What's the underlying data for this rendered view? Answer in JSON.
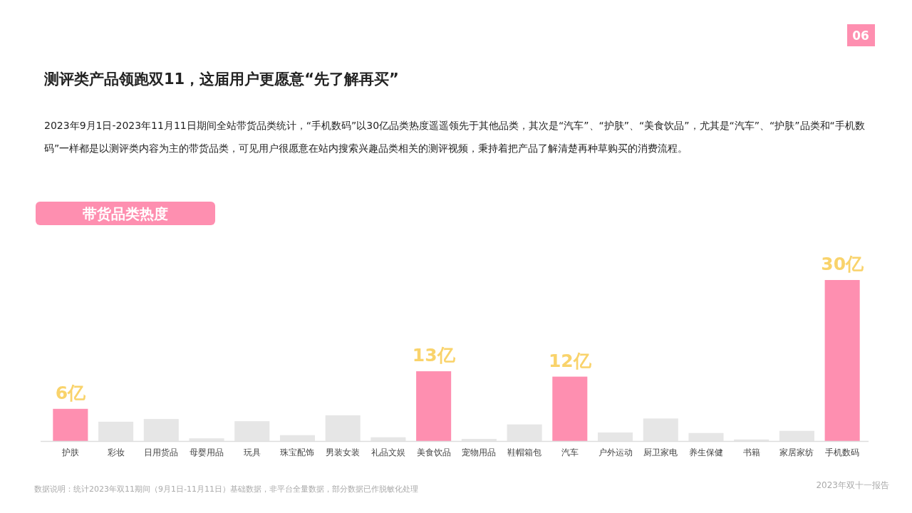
{
  "chart_data": {
    "type": "bar",
    "title": "测评类产品领跑双11，这届用户更愿意“先了解再买”",
    "subtitle": "2023年9月1日-2023年11月11日期间全站带货品类统计，“手机数码”以30亿品类热度遥遥领先于其他品类，其次是“汽车”、“护肤”、“美食饮品”，尤其是“汽车”、“护肤”品类和“手机数码”一样都是以测评类内容为主的带货品类，可见用户很愿意在站内搜索兴趣品类相关的测评视频，秉持着把产品了解清楚再种草购买的消费流程。",
    "annotations": [
      "带货品类热度",
      "数据说明：统计2023年双11期间（9月1日-11月11日）基础数据，非平台全量数据，部分数据已作脱敏化处理",
      "2023年双十一报告",
      "06"
    ],
    "categories": [
      "护肤",
      "彩妆",
      "日用货品",
      "母婴用品",
      "玩具",
      "珠宝配饰",
      "男装女装",
      "礼品文娱",
      "美食饮品",
      "宠物用品",
      "鞋帽箱包",
      "汽车",
      "户外运动",
      "厨卫家电",
      "养生保健",
      "书籍",
      "家居家纺",
      "手机数码"
    ],
    "values": [
      6,
      3.6,
      4.1,
      0.5,
      3.7,
      1.1,
      4.8,
      0.7,
      13,
      0.4,
      3.1,
      12,
      1.6,
      4.2,
      1.5,
      0.3,
      1.9,
      30
    ],
    "colors": [
      "#fe8fb0",
      "#e6e6e6",
      "#e6e6e6",
      "#e6e6e6",
      "#e6e6e6",
      "#e6e6e6",
      "#e6e6e6",
      "#e6e6e6",
      "#fe8fb0",
      "#e6e6e6",
      "#e6e6e6",
      "#fe8fb0",
      "#e6e6e6",
      "#e6e6e6",
      "#e6e6e6",
      "#e6e6e6",
      "#e6e6e6",
      "#fe8fb0"
    ],
    "value_labels": [
      "6亿",
      null,
      null,
      null,
      null,
      null,
      null,
      null,
      "13亿",
      null,
      null,
      "12亿",
      null,
      null,
      null,
      null,
      null,
      "30亿"
    ]
  }
}
